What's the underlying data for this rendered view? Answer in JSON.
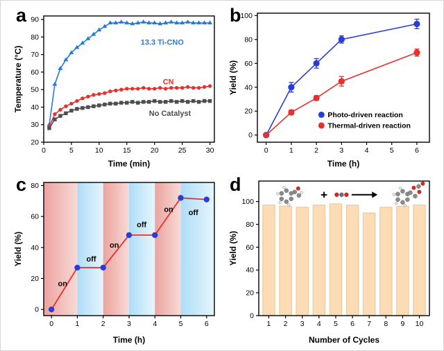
{
  "figure": {
    "background": "#ffffff"
  },
  "panels": {
    "a": {
      "label": "a"
    },
    "b": {
      "label": "b"
    },
    "c": {
      "label": "c"
    },
    "d": {
      "label": "d"
    }
  },
  "chart_data": [
    {
      "id": "a",
      "type": "line",
      "xlabel": "Time (min)",
      "ylabel": "Temperature (°C)",
      "xlim": [
        0,
        30.8
      ],
      "ylim": [
        20,
        92
      ],
      "xticks": [
        0,
        5,
        10,
        15,
        20,
        25,
        30
      ],
      "yticks": [
        20,
        30,
        40,
        50,
        60,
        70,
        80,
        90
      ],
      "x": [
        1,
        2,
        3,
        4,
        5,
        6,
        7,
        8,
        9,
        10,
        11,
        12,
        13,
        14,
        15,
        16,
        17,
        18,
        19,
        20,
        21,
        22,
        23,
        24,
        25,
        26,
        27,
        28,
        29,
        30
      ],
      "series": [
        {
          "name": "13.3 Ti-CNO",
          "color": "#2779d6",
          "marker": "triangle",
          "values": [
            30,
            53,
            62,
            67,
            71,
            74,
            76.5,
            79,
            81.5,
            84,
            86,
            88,
            88,
            88.5,
            88,
            87.5,
            88,
            88.5,
            88,
            88,
            87.5,
            88,
            88.5,
            88,
            88,
            88.5,
            88,
            88,
            88,
            88
          ]
        },
        {
          "name": "CN",
          "color": "#e4312d",
          "marker": "circle",
          "values": [
            29,
            36,
            38.5,
            40.5,
            42,
            43.5,
            45,
            46,
            47,
            47.5,
            48,
            49,
            49.5,
            50,
            50.5,
            50.5,
            50.5,
            51,
            50.5,
            50.5,
            51,
            50.5,
            51,
            51,
            51,
            51.5,
            51,
            51,
            51.5,
            52
          ]
        },
        {
          "name": "No Catalyst",
          "color": "#4d4d4d",
          "marker": "square",
          "values": [
            28,
            33,
            35,
            36.5,
            38,
            39,
            39.5,
            40,
            40.5,
            41,
            41.5,
            42,
            42,
            42.5,
            42.5,
            43,
            42.5,
            43,
            43,
            43.5,
            43,
            43,
            43.5,
            43,
            43.5,
            43,
            43.5,
            43,
            43.5,
            43.5
          ]
        }
      ],
      "annotations": [
        {
          "text": "13.3 Ti-CNO",
          "x": 17.5,
          "y": 75.5,
          "color": "#2779d6",
          "bold": true
        },
        {
          "text": "CN",
          "x": 21.5,
          "y": 53,
          "color": "#e4312d",
          "bold": true
        },
        {
          "text": "No Catalyst",
          "x": 19,
          "y": 35,
          "color": "#4d4d4d",
          "bold": true
        }
      ]
    },
    {
      "id": "b",
      "type": "line-error",
      "xlabel": "Time (h)",
      "ylabel": "Yield (%)",
      "xlim": [
        -0.35,
        6.5
      ],
      "ylim": [
        -6,
        102
      ],
      "xticks": [
        0,
        1,
        2,
        3,
        4,
        5,
        6
      ],
      "yticks": [
        0,
        20,
        40,
        60,
        80,
        100
      ],
      "x": [
        0,
        1,
        2,
        3,
        6
      ],
      "series": [
        {
          "name": "Photo-driven reaction",
          "color": "#2a3cd6",
          "marker": "circle",
          "values": [
            0,
            40,
            60,
            80,
            93
          ],
          "errors": [
            0,
            4,
            4,
            3,
            4
          ]
        },
        {
          "name": "Thermal-driven reaction",
          "color": "#e4312d",
          "marker": "circle",
          "values": [
            0,
            19,
            31,
            45,
            69
          ],
          "errors": [
            0,
            2,
            2,
            4,
            3
          ]
        }
      ],
      "legend": {
        "x": 2.2,
        "y": 17,
        "dy": 9
      }
    },
    {
      "id": "c",
      "type": "step-line",
      "xlabel": "Time (h)",
      "ylabel": "Yield (%)",
      "xlim": [
        -0.3,
        6.3
      ],
      "ylim": [
        -4,
        82
      ],
      "xticks": [
        0,
        1,
        2,
        3,
        4,
        5,
        6
      ],
      "yticks": [
        0,
        20,
        40,
        60,
        80
      ],
      "x": [
        0,
        1,
        2,
        3,
        4,
        5,
        6
      ],
      "series": [
        {
          "name": "Yield",
          "color": "#e4312d",
          "line_color": "#e4312d",
          "marker": "circle",
          "marker_color": "#2a3cd6",
          "values": [
            0,
            27,
            27,
            48,
            48,
            72,
            71
          ]
        }
      ],
      "bands": [
        {
          "x0": -0.3,
          "x1": 1,
          "kind": "light-on"
        },
        {
          "x0": 1,
          "x1": 2,
          "kind": "light-off"
        },
        {
          "x0": 2,
          "x1": 3,
          "kind": "light-on"
        },
        {
          "x0": 3,
          "x1": 4,
          "kind": "light-off"
        },
        {
          "x0": 4,
          "x1": 5,
          "kind": "light-on"
        },
        {
          "x0": 5,
          "x1": 6.3,
          "kind": "light-off"
        }
      ],
      "annotations": [
        {
          "text": "on",
          "x": 0.25,
          "y": 15,
          "bold": true
        },
        {
          "text": "off",
          "x": 1.35,
          "y": 31,
          "bold": true
        },
        {
          "text": "on",
          "x": 2.25,
          "y": 40,
          "bold": true
        },
        {
          "text": "off",
          "x": 3.3,
          "y": 53,
          "bold": true
        },
        {
          "text": "on",
          "x": 4.35,
          "y": 63,
          "bold": true
        },
        {
          "text": "off",
          "x": 5.3,
          "y": 61,
          "bold": true
        }
      ]
    },
    {
      "id": "d",
      "type": "bar",
      "xlabel": "Number of Cycles",
      "ylabel": "Yield (%)",
      "xlim": [
        0.4,
        10.6
      ],
      "ylim": [
        0,
        118
      ],
      "xticks": [
        1,
        2,
        3,
        4,
        5,
        6,
        7,
        8,
        9,
        10
      ],
      "yticks": [
        0,
        20,
        40,
        60,
        80,
        100
      ],
      "categories": [
        "1",
        "2",
        "3",
        "4",
        "5",
        "6",
        "7",
        "8",
        "9",
        "10"
      ],
      "values": [
        97,
        96,
        95,
        97,
        98,
        97,
        90,
        95,
        96,
        97
      ],
      "bar_color": "#fbdcb4",
      "bar_edge": "#eec492",
      "scheme": {
        "plus": "+",
        "reactant_x": 2.05,
        "plus_x": 4.3,
        "co2_x": 5.35,
        "arrow_x0": 5.95,
        "arrow_x1": 7.5,
        "product_x": 9.0,
        "y": 106
      }
    }
  ]
}
